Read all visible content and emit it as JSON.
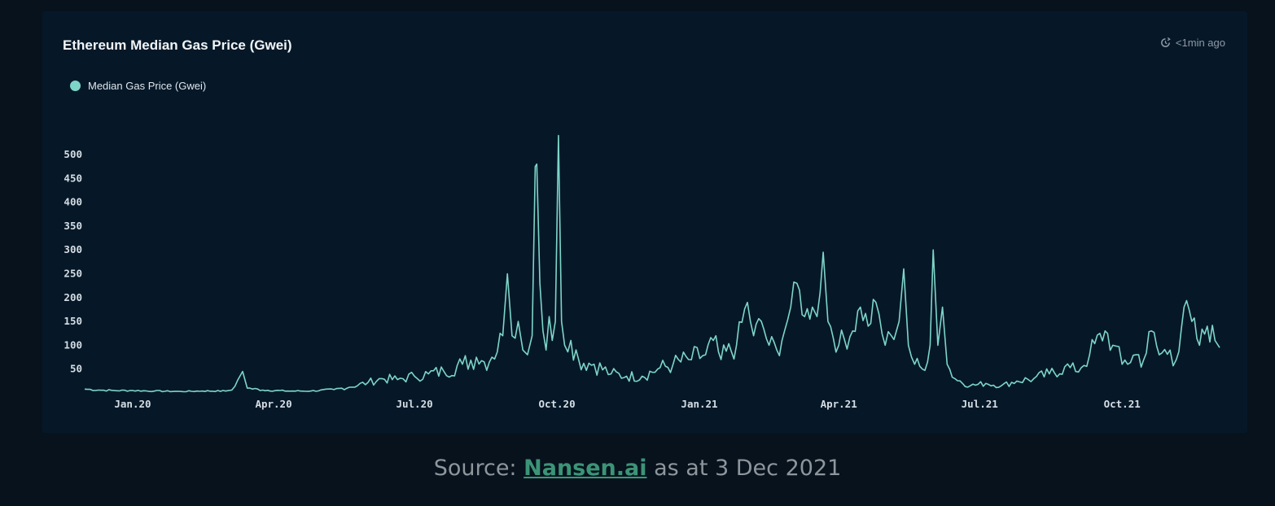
{
  "chart_data": {
    "type": "line",
    "title": "Ethereum Median Gas Price (Gwei)",
    "updated": "<1min ago",
    "legend": [
      {
        "name": "Median Gas Price (Gwei)",
        "color": "#7ed5c8"
      }
    ],
    "series_color": "#7ed5c8",
    "ylim": [
      0,
      540
    ],
    "yticks": [
      50,
      100,
      150,
      200,
      250,
      300,
      350,
      400,
      450,
      500
    ],
    "x_ticks": [
      "Jan.20",
      "Apr.20",
      "Jul.20",
      "Oct.20",
      "Jan.21",
      "Apr.21",
      "Jul.21",
      "Oct.21"
    ],
    "x_start": "2019-12-01",
    "x_end": "2021-12-03",
    "grid": false,
    "legend_position": "top-left",
    "series": [
      {
        "name": "Median Gas Price (Gwei)",
        "points": [
          [
            "2019-12-01",
            8
          ],
          [
            "2019-12-10",
            6
          ],
          [
            "2019-12-20",
            5
          ],
          [
            "2020-01-01",
            5
          ],
          [
            "2020-01-15",
            4
          ],
          [
            "2020-02-01",
            3
          ],
          [
            "2020-02-15",
            4
          ],
          [
            "2020-03-01",
            4
          ],
          [
            "2020-03-05",
            6
          ],
          [
            "2020-03-09",
            28
          ],
          [
            "2020-03-12",
            45
          ],
          [
            "2020-03-15",
            10
          ],
          [
            "2020-03-25",
            6
          ],
          [
            "2020-04-10",
            4
          ],
          [
            "2020-04-25",
            4
          ],
          [
            "2020-05-10",
            7
          ],
          [
            "2020-05-20",
            12
          ],
          [
            "2020-06-01",
            22
          ],
          [
            "2020-06-10",
            30
          ],
          [
            "2020-06-20",
            28
          ],
          [
            "2020-07-01",
            35
          ],
          [
            "2020-07-10",
            40
          ],
          [
            "2020-07-20",
            45
          ],
          [
            "2020-08-01",
            60
          ],
          [
            "2020-08-10",
            75
          ],
          [
            "2020-08-15",
            65
          ],
          [
            "2020-08-20",
            75
          ],
          [
            "2020-08-27",
            120
          ],
          [
            "2020-08-30",
            250
          ],
          [
            "2020-09-02",
            120
          ],
          [
            "2020-09-06",
            150
          ],
          [
            "2020-09-09",
            90
          ],
          [
            "2020-09-12",
            80
          ],
          [
            "2020-09-15",
            120
          ],
          [
            "2020-09-17",
            475
          ],
          [
            "2020-09-18",
            480
          ],
          [
            "2020-09-20",
            230
          ],
          [
            "2020-09-22",
            130
          ],
          [
            "2020-09-24",
            90
          ],
          [
            "2020-09-26",
            160
          ],
          [
            "2020-09-28",
            110
          ],
          [
            "2020-09-30",
            150
          ],
          [
            "2020-10-02",
            540
          ],
          [
            "2020-10-04",
            150
          ],
          [
            "2020-10-06",
            100
          ],
          [
            "2020-10-10",
            110
          ],
          [
            "2020-10-15",
            70
          ],
          [
            "2020-10-25",
            60
          ],
          [
            "2020-11-05",
            40
          ],
          [
            "2020-11-15",
            35
          ],
          [
            "2020-11-25",
            35
          ],
          [
            "2020-12-05",
            50
          ],
          [
            "2020-12-15",
            60
          ],
          [
            "2020-12-25",
            70
          ],
          [
            "2021-01-05",
            80
          ],
          [
            "2021-01-10",
            110
          ],
          [
            "2021-01-15",
            70
          ],
          [
            "2021-01-25",
            100
          ],
          [
            "2021-02-01",
            190
          ],
          [
            "2021-02-05",
            120
          ],
          [
            "2021-02-10",
            150
          ],
          [
            "2021-02-15",
            100
          ],
          [
            "2021-02-20",
            90
          ],
          [
            "2021-02-25",
            130
          ],
          [
            "2021-03-01",
            180
          ],
          [
            "2021-03-05",
            230
          ],
          [
            "2021-03-10",
            160
          ],
          [
            "2021-03-15",
            180
          ],
          [
            "2021-03-18",
            160
          ],
          [
            "2021-03-22",
            295
          ],
          [
            "2021-03-25",
            150
          ],
          [
            "2021-04-01",
            100
          ],
          [
            "2021-04-10",
            130
          ],
          [
            "2021-04-15",
            180
          ],
          [
            "2021-04-20",
            140
          ],
          [
            "2021-04-25",
            190
          ],
          [
            "2021-05-01",
            100
          ],
          [
            "2021-05-05",
            120
          ],
          [
            "2021-05-10",
            150
          ],
          [
            "2021-05-13",
            260
          ],
          [
            "2021-05-16",
            100
          ],
          [
            "2021-05-20",
            60
          ],
          [
            "2021-05-25",
            50
          ],
          [
            "2021-05-30",
            100
          ],
          [
            "2021-06-01",
            300
          ],
          [
            "2021-06-04",
            100
          ],
          [
            "2021-06-07",
            180
          ],
          [
            "2021-06-10",
            60
          ],
          [
            "2021-06-15",
            30
          ],
          [
            "2021-06-25",
            15
          ],
          [
            "2021-07-05",
            20
          ],
          [
            "2021-07-15",
            15
          ],
          [
            "2021-07-25",
            25
          ],
          [
            "2021-08-05",
            30
          ],
          [
            "2021-08-15",
            40
          ],
          [
            "2021-08-25",
            55
          ],
          [
            "2021-09-01",
            45
          ],
          [
            "2021-09-10",
            80
          ],
          [
            "2021-09-20",
            130
          ],
          [
            "2021-09-25",
            100
          ],
          [
            "2021-10-01",
            60
          ],
          [
            "2021-10-10",
            80
          ],
          [
            "2021-10-15",
            70
          ],
          [
            "2021-10-20",
            130
          ],
          [
            "2021-10-25",
            80
          ],
          [
            "2021-11-01",
            90
          ],
          [
            "2021-11-05",
            70
          ],
          [
            "2021-11-10",
            180
          ],
          [
            "2021-11-15",
            150
          ],
          [
            "2021-11-20",
            100
          ],
          [
            "2021-11-25",
            140
          ],
          [
            "2021-11-30",
            110
          ],
          [
            "2021-12-03",
            95
          ]
        ]
      }
    ]
  },
  "caption": {
    "prefix": "Source: ",
    "link_text": "Nansen.ai",
    "suffix": " as at 3 Dec 2021"
  }
}
